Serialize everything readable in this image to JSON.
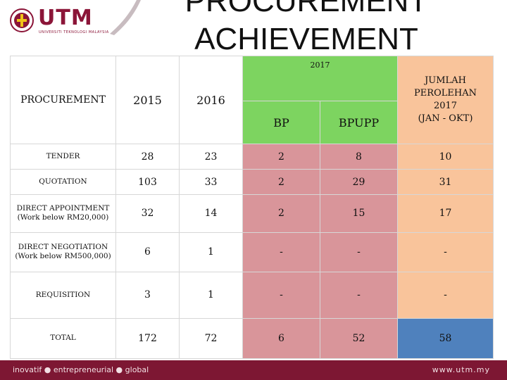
{
  "header": {
    "logo_text": "UTM",
    "logo_subtext": "UNIVERSITI TEKNOLOGI MALAYSIA",
    "title_line1": "PROCUREMENT",
    "title_line2": "ACHIEVEMENT"
  },
  "table": {
    "headers": {
      "procurement": "PROCUREMENT",
      "y2015": "2015",
      "y2016": "2016",
      "y2017": "2017",
      "bp": "BP",
      "bpupp": "BPUPP",
      "jumlah_line1": "JUMLAH",
      "jumlah_line2": "PEROLEHAN",
      "jumlah_line3": "2017",
      "jumlah_line4": "(JAN - OKT)"
    },
    "rows": [
      {
        "label1": "TENDER",
        "label2": "",
        "y2015": "28",
        "y2016": "23",
        "bp": "2",
        "bpupp": "8",
        "jumlah": "10"
      },
      {
        "label1": "QUOTATION",
        "label2": "",
        "y2015": "103",
        "y2016": "33",
        "bp": "2",
        "bpupp": "29",
        "jumlah": "31"
      },
      {
        "label1": "DIRECT APPOINTMENT",
        "label2": "(Work below RM20,000)",
        "y2015": "32",
        "y2016": "14",
        "bp": "2",
        "bpupp": "15",
        "jumlah": "17"
      },
      {
        "label1": "DIRECT NEGOTIATION",
        "label2": "(Work below RM500,000)",
        "y2015": "6",
        "y2016": "1",
        "bp": "-",
        "bpupp": "-",
        "jumlah": "-"
      },
      {
        "label1": "REQUISITION",
        "label2": "",
        "y2015": "3",
        "y2016": "1",
        "bp": "-",
        "bpupp": "-",
        "jumlah": "-"
      },
      {
        "label1": "TOTAL",
        "label2": "",
        "y2015": "172",
        "y2016": "72",
        "bp": "6",
        "bpupp": "52",
        "jumlah": "58"
      }
    ]
  },
  "footer": {
    "tagline": "inovatif ● entrepreneurial ● global",
    "url": "www.utm.my"
  },
  "colors": {
    "brand": "#7d1733",
    "green": "#7dd460",
    "pink": "#d9959a",
    "orange": "#f9c49b",
    "blue": "#4f81bd"
  }
}
